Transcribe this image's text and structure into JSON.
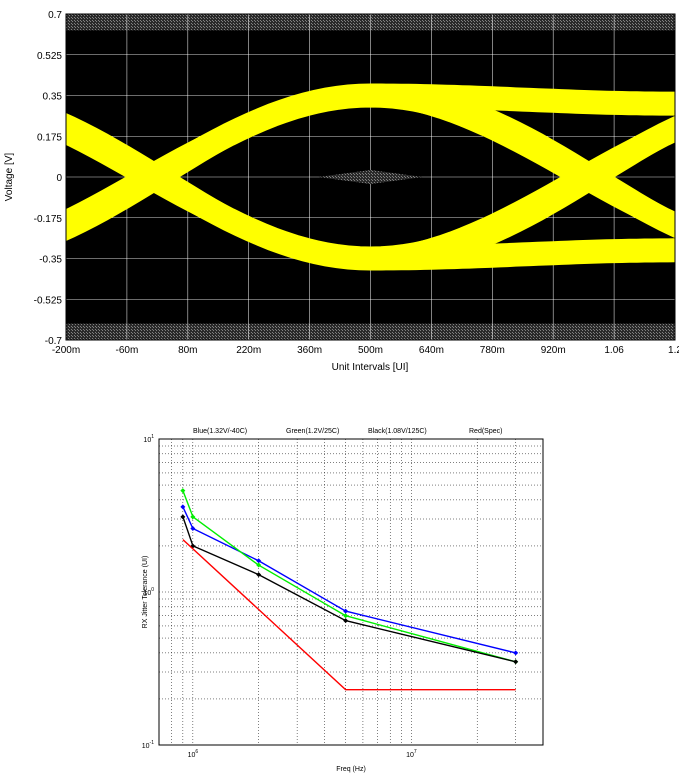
{
  "chart_data": [
    {
      "type": "eye-diagram",
      "xlabel": "Unit Intervals [UI]",
      "ylabel": "Voltage [V]",
      "xlim": [
        -0.2,
        1.2
      ],
      "ylim": [
        -0.7,
        0.7
      ],
      "x_ticks": [
        {
          "value": -0.2,
          "label": "-200m"
        },
        {
          "value": -0.06,
          "label": "-60m"
        },
        {
          "value": 0.08,
          "label": "80m"
        },
        {
          "value": 0.22,
          "label": "220m"
        },
        {
          "value": 0.36,
          "label": "360m"
        },
        {
          "value": 0.5,
          "label": "500m"
        },
        {
          "value": 0.64,
          "label": "640m"
        },
        {
          "value": 0.78,
          "label": "780m"
        },
        {
          "value": 0.92,
          "label": "920m"
        },
        {
          "value": 1.06,
          "label": "1.06"
        },
        {
          "value": 1.2,
          "label": "1.2"
        }
      ],
      "y_ticks": [
        {
          "value": 0.7,
          "label": "0.7"
        },
        {
          "value": 0.525,
          "label": "0.525"
        },
        {
          "value": 0.35,
          "label": "0.35"
        },
        {
          "value": 0.175,
          "label": "0.175"
        },
        {
          "value": 0,
          "label": "0"
        },
        {
          "value": -0.175,
          "label": "-0.175"
        },
        {
          "value": -0.35,
          "label": "-0.35"
        },
        {
          "value": -0.525,
          "label": "-0.525"
        },
        {
          "value": -0.7,
          "label": "-0.7"
        }
      ],
      "grid": true,
      "background": "#000000",
      "trace_color": "#ffff00",
      "mask_color": "#808080",
      "crossings_ui": [
        0.0,
        1.0
      ],
      "eye_peak_voltage": 0.35,
      "upper_rail_range": [
        0.63,
        0.7
      ],
      "lower_rail_range": [
        -0.7,
        -0.63
      ],
      "inner_mask": {
        "x": [
          0.38,
          0.5,
          0.62
        ],
        "y": [
          -0.03,
          0,
          0.03
        ]
      }
    },
    {
      "type": "line",
      "xscale": "log",
      "yscale": "log",
      "xlabel": "Freq (Hz)",
      "ylabel": "RX Jitter Tolerance (UI)",
      "xlim": [
        700000,
        40000000
      ],
      "ylim": [
        0.1,
        10
      ],
      "x_ticks": [
        {
          "value": 1000000,
          "base": "10",
          "exp": "6"
        },
        {
          "value": 10000000,
          "base": "10",
          "exp": "7"
        }
      ],
      "y_ticks": [
        {
          "value": 0.1,
          "base": "10",
          "exp": "-1"
        },
        {
          "value": 1,
          "base": "10",
          "exp": "0"
        },
        {
          "value": 10,
          "base": "10",
          "exp": "1"
        }
      ],
      "grid": "dotted",
      "legend_text": [
        "Blue(1.32V/-40C)",
        "Green(1.2V/25C)",
        "Black(1.08V/125C)",
        "Red(Spec)"
      ],
      "legend_position": "top",
      "series": [
        {
          "name": "Blue(1.32V/-40C)",
          "color": "#0000ff",
          "marker": true,
          "x": [
            900000,
            1000000,
            2000000,
            5000000,
            30000000
          ],
          "y": [
            3.6,
            2.6,
            1.6,
            0.75,
            0.4
          ]
        },
        {
          "name": "Green(1.2V/25C)",
          "color": "#00ee00",
          "marker": true,
          "x": [
            900000,
            1000000,
            2000000,
            5000000,
            30000000
          ],
          "y": [
            4.6,
            3.1,
            1.5,
            0.7,
            0.35
          ]
        },
        {
          "name": "Black(1.08V/125C)",
          "color": "#000000",
          "marker": true,
          "x": [
            900000,
            1000000,
            2000000,
            5000000,
            30000000
          ],
          "y": [
            3.1,
            2.0,
            1.3,
            0.65,
            0.35
          ]
        },
        {
          "name": "Red(Spec)",
          "color": "#ff0000",
          "marker": false,
          "x": [
            900000,
            5000000,
            30000000
          ],
          "y": [
            2.2,
            0.23,
            0.23
          ]
        }
      ]
    }
  ]
}
